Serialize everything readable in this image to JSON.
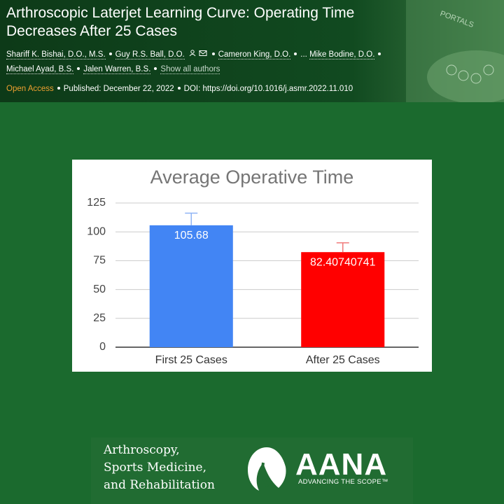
{
  "header": {
    "title": "Arthroscopic Laterjet Learning Curve: Operating Time Decreases After 25 Cases",
    "authors": [
      "Shariff K. Bishai, D.O., M.S.",
      "Guy R.S. Ball, D.O.",
      "Cameron King, D.O.",
      "...",
      "Mike Bodine, D.O.",
      "Michael Ayad, B.S.",
      "Jalen Warren, B.S."
    ],
    "show_all": "Show all authors",
    "access": "Open Access",
    "published": "Published: December 22, 2022",
    "doi": "DOI: https://doi.org/10.1016/j.asmr.2022.11.010",
    "illustration_label": "PORTALS"
  },
  "chart_data": {
    "type": "bar",
    "title": "Average Operative Time",
    "categories": [
      "First 25 Cases",
      "After 25 Cases"
    ],
    "values": [
      105.68,
      82.40740741
    ],
    "errors": [
      10.5,
      8.1
    ],
    "colors": [
      "#4285f4",
      "#ff0000"
    ],
    "error_colors": [
      "#8fb4f5",
      "#f07a7a"
    ],
    "ylim": [
      0,
      125
    ],
    "yticks": [
      0,
      25,
      50,
      75,
      100,
      125
    ],
    "grid": true
  },
  "footer": {
    "journal": [
      "Arthroscopy,",
      "Sports Medicine,",
      "and Rehabilitation"
    ],
    "brand": "AANA",
    "tagline": "ADVANCING THE SCOPE™"
  }
}
